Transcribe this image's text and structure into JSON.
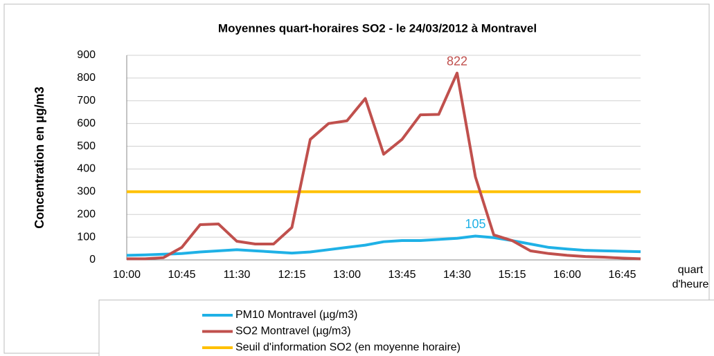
{
  "chart_data": {
    "type": "line",
    "title": "Moyennes quart-horaires SO2  -  le 24/03/2012 à Montravel",
    "y_label": "Concentration en µg/m3",
    "x_label": "quart d'heure",
    "categories": [
      "10:00",
      null,
      null,
      "10:45",
      null,
      null,
      "11:30",
      null,
      null,
      "12:15",
      null,
      null,
      "13:00",
      null,
      null,
      "13:45",
      null,
      null,
      "14:30",
      null,
      null,
      "15:15",
      null,
      null,
      "16:00",
      null,
      null,
      "16:45",
      null
    ],
    "series": [
      {
        "name": "PM10 Montravel (µg/m3)",
        "color": "#1fb1e6",
        "values": [
          20,
          22,
          25,
          28,
          35,
          40,
          45,
          40,
          35,
          30,
          35,
          45,
          55,
          65,
          80,
          85,
          85,
          90,
          95,
          105,
          98,
          85,
          70,
          55,
          48,
          42,
          40,
          38,
          36
        ]
      },
      {
        "name": "SO2 Montravel (µg/m3)",
        "color": "#c0504d",
        "values": [
          5,
          5,
          10,
          55,
          155,
          158,
          82,
          70,
          70,
          143,
          530,
          600,
          612,
          710,
          465,
          530,
          638,
          640,
          822,
          365,
          110,
          85,
          40,
          28,
          20,
          15,
          12,
          8,
          5
        ]
      },
      {
        "name": "Seuil d'information SO2 (en moyenne horaire)",
        "color": "#ffc000",
        "values": [
          300,
          300,
          300,
          300,
          300,
          300,
          300,
          300,
          300,
          300,
          300,
          300,
          300,
          300,
          300,
          300,
          300,
          300,
          300,
          300,
          300,
          300,
          300,
          300,
          300,
          300,
          300,
          300,
          300
        ]
      }
    ],
    "annotations": [
      {
        "series": 1,
        "index": 18
      },
      {
        "series": 0,
        "index": 19
      }
    ],
    "ylim": [
      0,
      900
    ],
    "yticks": [
      0,
      100,
      200,
      300,
      400,
      500,
      600,
      700,
      800,
      900
    ],
    "grid": true
  }
}
